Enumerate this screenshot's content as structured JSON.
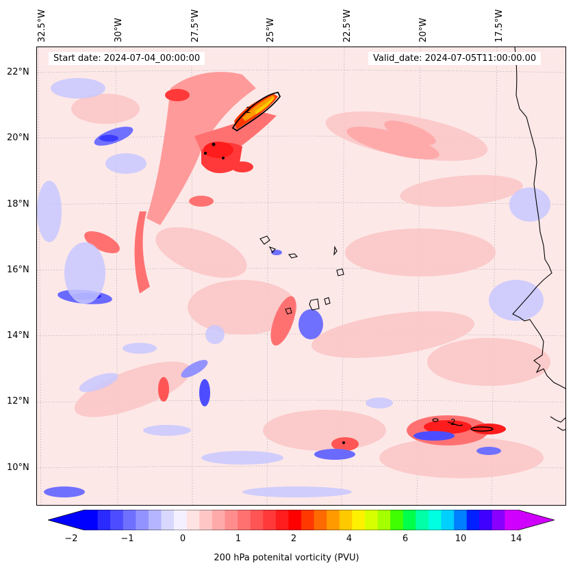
{
  "map": {
    "start_date": "Start date: 2024-07-04_00:00:00",
    "valid_date": "Valid_date: 2024-07-05T11:00:00.00",
    "lon_labels": [
      "32.5°W",
      "30°W",
      "27.5°W",
      "25°W",
      "22.5°W",
      "20°W",
      "17.5°W"
    ],
    "lat_labels": [
      "22°N",
      "20°N",
      "18°N",
      "16°N",
      "14°N",
      "12°N",
      "10°N"
    ],
    "contour_labels": [
      "2",
      "2"
    ],
    "colors": {
      "background": "#fde8e8",
      "coastline": "#000000",
      "grid": "#b0b0b0"
    },
    "features": [
      {
        "name": "weak-positive-pv-band",
        "color": "#fbc7c7"
      },
      {
        "name": "strong-positive-pv-ridge",
        "color": "#ff2020"
      },
      {
        "name": "peak-pv-streak",
        "color": "#ff9900"
      },
      {
        "name": "negative-pv-eddy",
        "color": "#3a3aff"
      },
      {
        "name": "weak-negative-pv-patch",
        "color": "#c8c8ff"
      }
    ]
  },
  "colorbar": {
    "label": "200 hPa potenital vorticity (PVU)",
    "ticks": [
      "−2",
      "−1",
      "0",
      "1",
      "2",
      "4",
      "6",
      "10",
      "14"
    ],
    "colors": [
      "#0000ff",
      "#2a2aff",
      "#4d4dff",
      "#7070ff",
      "#9393ff",
      "#b5b5ff",
      "#d8d8ff",
      "#f5f0ff",
      "#ffe2e2",
      "#ffc6c6",
      "#ffaaaa",
      "#ff8d8d",
      "#ff7171",
      "#ff5555",
      "#ff3939",
      "#ff1c1c",
      "#ff0000",
      "#ff3800",
      "#ff6a00",
      "#ff9a00",
      "#ffc900",
      "#fff200",
      "#d8ff00",
      "#a6ff00",
      "#3fff00",
      "#00ff4a",
      "#00ffa6",
      "#00ffe1",
      "#00d0ff",
      "#0080ff",
      "#0020ff",
      "#4000ff",
      "#8a00ff",
      "#d000ff"
    ],
    "extend_left_color": "#0000ff",
    "extend_right_color": "#d000ff"
  }
}
